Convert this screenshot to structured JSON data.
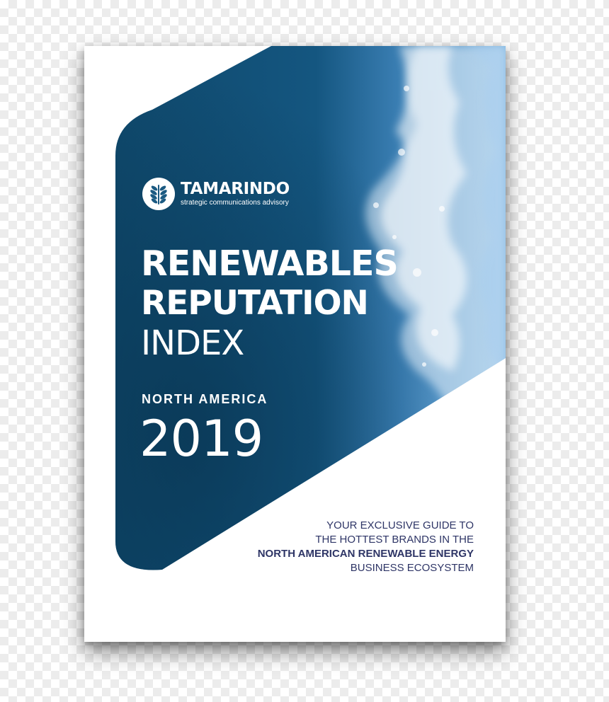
{
  "brand": {
    "name": "TAMARINDO",
    "tagline": "strategic communications advisory",
    "logo_icon": "leaf-icon"
  },
  "title": {
    "line1": "RENEWABLES",
    "line2": "REPUTATION",
    "line3": "INDEX"
  },
  "region": "NORTH AMERICA",
  "year": "2019",
  "blurb": {
    "line1": "YOUR EXCLUSIVE GUIDE TO",
    "line2": "THE HOTTEST BRANDS IN THE",
    "line3": "NORTH AMERICAN RENEWABLE ENERGY",
    "line4": "BUSINESS ECOSYSTEM"
  },
  "colors": {
    "deep_water": "#0f4a6e",
    "surf_blue": "#5b9fd0",
    "blurb_text": "#2e3566",
    "page": "#ffffff"
  }
}
